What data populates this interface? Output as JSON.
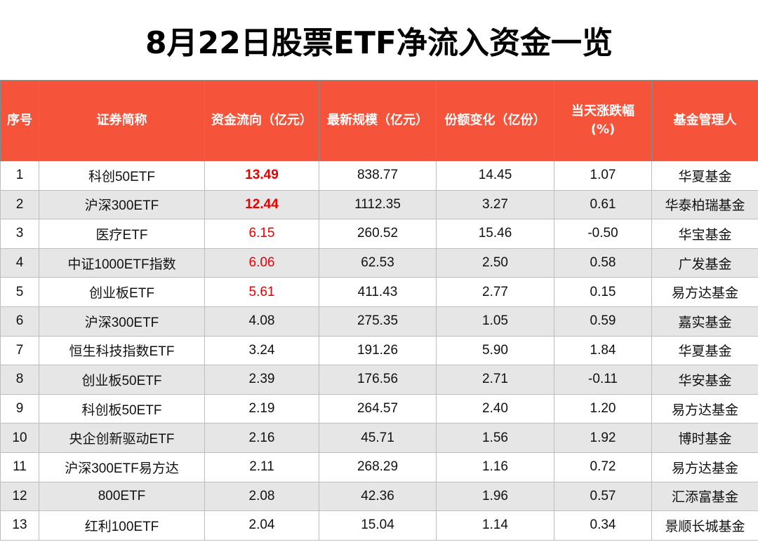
{
  "title": "8月22日股票ETF净流入资金一览",
  "columns": {
    "seq": "序号",
    "name": "证券简称",
    "flow": "资金流向（亿元）",
    "scale": "最新规模（亿元）",
    "share_change": "份额变化（亿份）",
    "pct_line1": "当天涨跌幅",
    "pct_line2": "(%)",
    "manager": "基金管理人"
  },
  "colors": {
    "header_bg": "#f5533a",
    "highlight": "#e60000",
    "stripe": "#e6e6e6"
  },
  "rows": [
    {
      "seq": "1",
      "name": "科创50ETF",
      "flow": "13.49",
      "scale": "838.77",
      "share_change": "14.45",
      "pct": "1.07",
      "manager": "华夏基金"
    },
    {
      "seq": "2",
      "name": "沪深300ETF",
      "flow": "12.44",
      "scale": "1112.35",
      "share_change": "3.27",
      "pct": "0.61",
      "manager": "华泰柏瑞基金"
    },
    {
      "seq": "3",
      "name": "医疗ETF",
      "flow": "6.15",
      "scale": "260.52",
      "share_change": "15.46",
      "pct": "-0.50",
      "manager": "华宝基金"
    },
    {
      "seq": "4",
      "name": "中证1000ETF指数",
      "flow": "6.06",
      "scale": "62.53",
      "share_change": "2.50",
      "pct": "0.58",
      "manager": "广发基金"
    },
    {
      "seq": "5",
      "name": "创业板ETF",
      "flow": "5.61",
      "scale": "411.43",
      "share_change": "2.77",
      "pct": "0.15",
      "manager": "易方达基金"
    },
    {
      "seq": "6",
      "name": "沪深300ETF",
      "flow": "4.08",
      "scale": "275.35",
      "share_change": "1.05",
      "pct": "0.59",
      "manager": "嘉实基金"
    },
    {
      "seq": "7",
      "name": "恒生科技指数ETF",
      "flow": "3.24",
      "scale": "191.26",
      "share_change": "5.90",
      "pct": "1.84",
      "manager": "华夏基金"
    },
    {
      "seq": "8",
      "name": "创业板50ETF",
      "flow": "2.39",
      "scale": "176.56",
      "share_change": "2.71",
      "pct": "-0.11",
      "manager": "华安基金"
    },
    {
      "seq": "9",
      "name": "科创板50ETF",
      "flow": "2.19",
      "scale": "264.57",
      "share_change": "2.40",
      "pct": "1.20",
      "manager": "易方达基金"
    },
    {
      "seq": "10",
      "name": "央企创新驱动ETF",
      "flow": "2.16",
      "scale": "45.71",
      "share_change": "1.56",
      "pct": "1.92",
      "manager": "博时基金"
    },
    {
      "seq": "11",
      "name": "沪深300ETF易方达",
      "flow": "2.11",
      "scale": "268.29",
      "share_change": "1.16",
      "pct": "0.72",
      "manager": "易方达基金"
    },
    {
      "seq": "12",
      "name": "800ETF",
      "flow": "2.08",
      "scale": "42.36",
      "share_change": "1.96",
      "pct": "0.57",
      "manager": "汇添富基金"
    },
    {
      "seq": "13",
      "name": "红利100ETF",
      "flow": "2.04",
      "scale": "15.04",
      "share_change": "1.14",
      "pct": "0.34",
      "manager": "景顺长城基金"
    }
  ]
}
